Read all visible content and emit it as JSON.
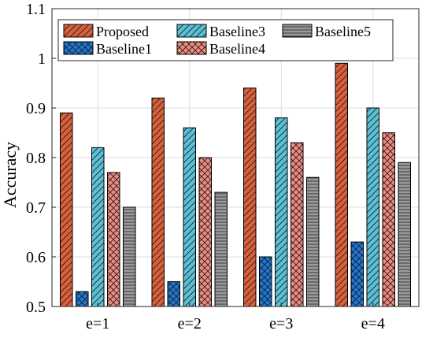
{
  "chart_data": {
    "type": "bar",
    "title": "",
    "xlabel": "",
    "ylabel": "Accuracy",
    "categories": [
      "e=1",
      "e=2",
      "e=3",
      "e=4"
    ],
    "ylim": [
      0.5,
      1.1
    ],
    "yticks": [
      "0.5",
      "0.6",
      "0.7",
      "0.8",
      "0.9",
      "1",
      "1.1"
    ],
    "grid": true,
    "legend_position": "top",
    "series": [
      {
        "name": "Proposed",
        "values": [
          0.89,
          0.92,
          0.94,
          0.99
        ],
        "color": "#D9603B",
        "pattern": "diagonal"
      },
      {
        "name": "Baseline1",
        "values": [
          0.53,
          0.55,
          0.6,
          0.63
        ],
        "color": "#1F77D4",
        "pattern": "crosshatch"
      },
      {
        "name": "Baseline3",
        "values": [
          0.82,
          0.86,
          0.88,
          0.9
        ],
        "color": "#5BC0D6",
        "pattern": "diagonal"
      },
      {
        "name": "Baseline4",
        "values": [
          0.77,
          0.8,
          0.83,
          0.85
        ],
        "color": "#F08A80",
        "pattern": "crosshatch"
      },
      {
        "name": "Baseline5",
        "values": [
          0.7,
          0.73,
          0.76,
          0.79
        ],
        "color": "#9A9A9A",
        "pattern": "horizontal"
      }
    ]
  }
}
